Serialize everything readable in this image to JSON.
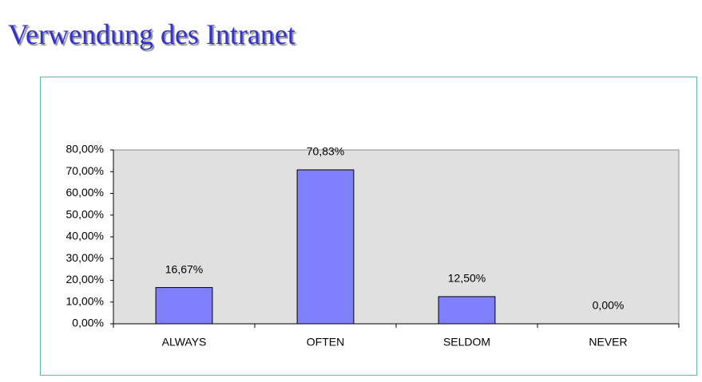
{
  "chart_data": {
    "type": "bar",
    "title": "Verwendung des Intranet",
    "categories": [
      "ALWAYS",
      "OFTEN",
      "SELDOM",
      "NEVER"
    ],
    "values": [
      16.67,
      70.83,
      12.5,
      0
    ],
    "value_labels": [
      "16,67%",
      "70,83%",
      "12,50%",
      "0,00%"
    ],
    "color": "#8080ff",
    "ylim": [
      0,
      80
    ],
    "yticks": [
      {
        "value": 0,
        "label": "0,00%"
      },
      {
        "value": 10,
        "label": "10,00%"
      },
      {
        "value": 20,
        "label": "20,00%"
      },
      {
        "value": 30,
        "label": "30,00%"
      },
      {
        "value": 40,
        "label": "40,00%"
      },
      {
        "value": 50,
        "label": "50,00%"
      },
      {
        "value": 60,
        "label": "60,00%"
      },
      {
        "value": 70,
        "label": "70,00%"
      },
      {
        "value": 80,
        "label": "80,00%"
      }
    ],
    "grid": false
  }
}
